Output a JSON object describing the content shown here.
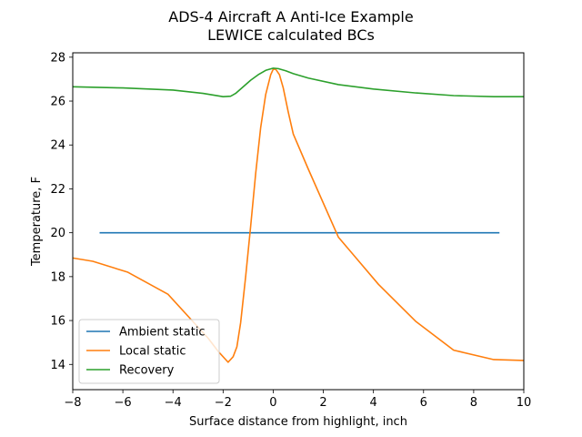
{
  "chart_data": {
    "type": "line",
    "title": [
      "ADS-4 Aircraft A Anti-Ice Example",
      "LEWICE calculated BCs"
    ],
    "xlabel": "Surface distance from highlight, inch",
    "ylabel": "Temperature, F",
    "xlim": [
      -8,
      10
    ],
    "ylim": [
      12.85,
      28.2
    ],
    "xticks": [
      -8,
      -6,
      -4,
      -2,
      0,
      2,
      4,
      6,
      8,
      10
    ],
    "xtick_labels": [
      "−8",
      "−6",
      "−4",
      "−2",
      "0",
      "2",
      "4",
      "6",
      "8",
      "10"
    ],
    "yticks": [
      14,
      16,
      18,
      20,
      22,
      24,
      26,
      28
    ],
    "ytick_labels": [
      "14",
      "16",
      "18",
      "20",
      "22",
      "24",
      "26",
      "28"
    ],
    "legend_position": "lower-left",
    "series": [
      {
        "name": "Ambient static",
        "color": "#1f77b4",
        "x": [
          -6.9,
          9.0
        ],
        "y": [
          20.0,
          20.0
        ]
      },
      {
        "name": "Local static",
        "color": "#ff7f0e",
        "x": [
          -8.0,
          -7.2,
          -5.8,
          -4.2,
          -2.6,
          -2.2,
          -1.8,
          -1.6,
          -1.45,
          -1.3,
          -1.1,
          -0.9,
          -0.7,
          -0.5,
          -0.3,
          -0.1,
          0.0,
          0.1,
          0.25,
          0.4,
          0.6,
          0.8,
          1.4,
          2.6,
          4.2,
          5.7,
          7.2,
          8.8,
          10.0
        ],
        "y": [
          18.85,
          18.7,
          18.2,
          17.2,
          15.2,
          14.6,
          14.1,
          14.35,
          14.8,
          15.9,
          18.0,
          20.3,
          22.7,
          24.8,
          26.3,
          27.2,
          27.45,
          27.45,
          27.2,
          26.6,
          25.5,
          24.5,
          22.9,
          19.8,
          17.65,
          15.95,
          14.65,
          14.22,
          14.18
        ]
      },
      {
        "name": "Recovery",
        "color": "#2ca02c",
        "x": [
          -8.0,
          -6.0,
          -4.0,
          -2.8,
          -2.0,
          -1.7,
          -1.5,
          -1.2,
          -0.9,
          -0.6,
          -0.3,
          0.0,
          0.2,
          0.5,
          0.8,
          1.4,
          2.6,
          4.0,
          5.7,
          7.2,
          8.8,
          10.0
        ],
        "y": [
          26.65,
          26.6,
          26.5,
          26.35,
          26.2,
          26.22,
          26.35,
          26.65,
          26.95,
          27.2,
          27.4,
          27.5,
          27.48,
          27.38,
          27.25,
          27.05,
          26.75,
          26.55,
          26.37,
          26.25,
          26.2,
          26.2
        ]
      }
    ]
  }
}
